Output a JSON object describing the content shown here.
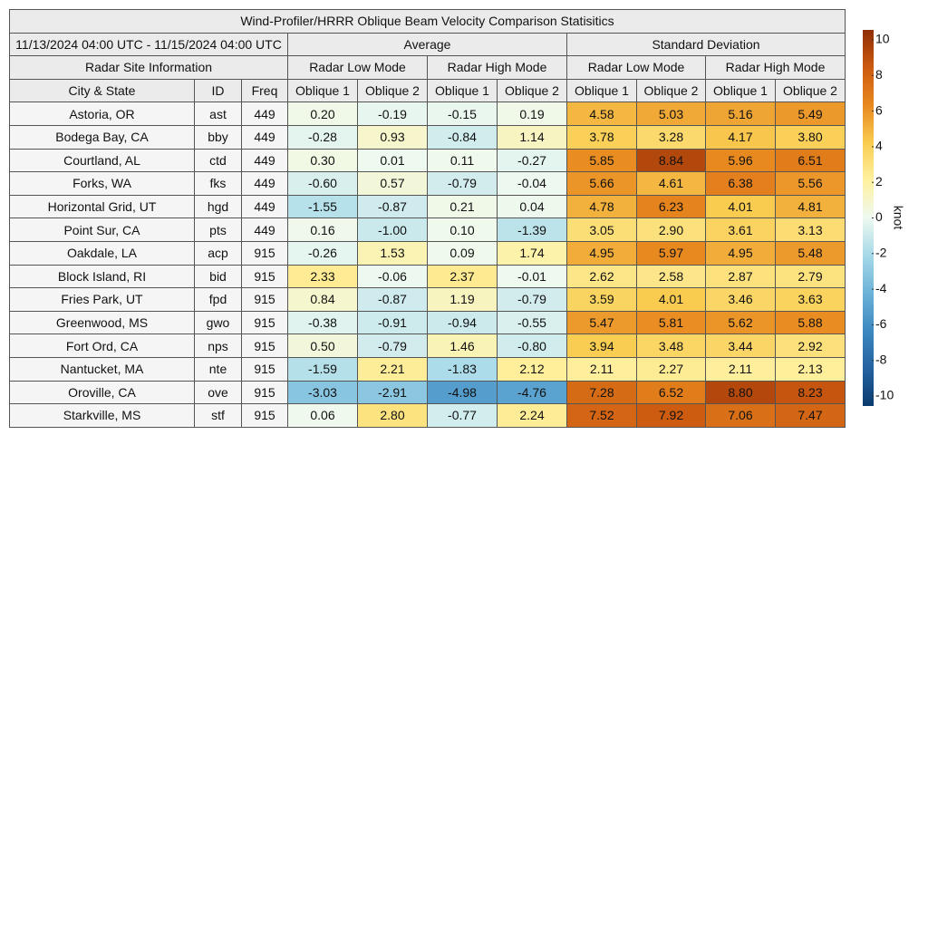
{
  "table": {
    "title": "Wind-Profiler/HRRR Oblique Beam Velocity Comparison Statisitics",
    "period": "11/13/2024 04:00 UTC - 11/15/2024 04:00 UTC",
    "groups": [
      "Average",
      "Standard Deviation"
    ],
    "site_header": "Radar Site Information",
    "modes": [
      "Radar Low Mode",
      "Radar High Mode",
      "Radar Low Mode",
      "Radar High Mode"
    ],
    "columns": [
      "City & State",
      "ID",
      "Freq",
      "Oblique 1",
      "Oblique 2",
      "Oblique 1",
      "Oblique 2",
      "Oblique 1",
      "Oblique 2",
      "Oblique 1",
      "Oblique 2"
    ],
    "rows": [
      [
        "Astoria, OR",
        "ast",
        "449",
        "0.20",
        "-0.19",
        "-0.15",
        "0.19",
        "4.58",
        "5.03",
        "5.16",
        "5.49"
      ],
      [
        "Bodega Bay, CA",
        "bby",
        "449",
        "-0.28",
        "0.93",
        "-0.84",
        "1.14",
        "3.78",
        "3.28",
        "4.17",
        "3.80"
      ],
      [
        "Courtland, AL",
        "ctd",
        "449",
        "0.30",
        "0.01",
        "0.11",
        "-0.27",
        "5.85",
        "8.84",
        "5.96",
        "6.51"
      ],
      [
        "Forks, WA",
        "fks",
        "449",
        "-0.60",
        "0.57",
        "-0.79",
        "-0.04",
        "5.66",
        "4.61",
        "6.38",
        "5.56"
      ],
      [
        "Horizontal Grid, UT",
        "hgd",
        "449",
        "-1.55",
        "-0.87",
        "0.21",
        "0.04",
        "4.78",
        "6.23",
        "4.01",
        "4.81"
      ],
      [
        "Point Sur, CA",
        "pts",
        "449",
        "0.16",
        "-1.00",
        "0.10",
        "-1.39",
        "3.05",
        "2.90",
        "3.61",
        "3.13"
      ],
      [
        "Oakdale, LA",
        "acp",
        "915",
        "-0.26",
        "1.53",
        "0.09",
        "1.74",
        "4.95",
        "5.97",
        "4.95",
        "5.48"
      ],
      [
        "Block Island, RI",
        "bid",
        "915",
        "2.33",
        "-0.06",
        "2.37",
        "-0.01",
        "2.62",
        "2.58",
        "2.87",
        "2.79"
      ],
      [
        "Fries Park, UT",
        "fpd",
        "915",
        "0.84",
        "-0.87",
        "1.19",
        "-0.79",
        "3.59",
        "4.01",
        "3.46",
        "3.63"
      ],
      [
        "Greenwood, MS",
        "gwo",
        "915",
        "-0.38",
        "-0.91",
        "-0.94",
        "-0.55",
        "5.47",
        "5.81",
        "5.62",
        "5.88"
      ],
      [
        "Fort Ord, CA",
        "nps",
        "915",
        "0.50",
        "-0.79",
        "1.46",
        "-0.80",
        "3.94",
        "3.48",
        "3.44",
        "2.92"
      ],
      [
        "Nantucket, MA",
        "nte",
        "915",
        "-1.59",
        "2.21",
        "-1.83",
        "2.12",
        "2.11",
        "2.27",
        "2.11",
        "2.13"
      ],
      [
        "Oroville, CA",
        "ove",
        "915",
        "-3.03",
        "-2.91",
        "-4.98",
        "-4.76",
        "7.28",
        "6.52",
        "8.80",
        "8.23"
      ],
      [
        "Starkville, MS",
        "stf",
        "915",
        "0.06",
        "2.80",
        "-0.77",
        "2.24",
        "7.52",
        "7.92",
        "7.06",
        "7.47"
      ]
    ]
  },
  "colorbar": {
    "label": "knot",
    "lim": [
      -10,
      10
    ],
    "ticks": [
      -10,
      -8,
      -6,
      -4,
      -2,
      0,
      2,
      4,
      6,
      8,
      10
    ],
    "colors": [
      "#0b3b6e",
      "#2462a0",
      "#3d88c0",
      "#6cb2d8",
      "#a6d9e8",
      "#eef9f0",
      "#fff1a0",
      "#f9cc50",
      "#e8881f",
      "#cc5a10",
      "#8f2e05"
    ]
  }
}
